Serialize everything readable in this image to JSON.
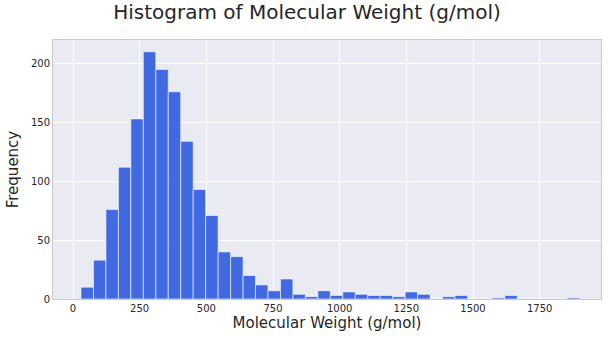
{
  "chart_data": {
    "type": "histogram",
    "title": "Histogram of Molecular Weight (g/mol)",
    "x_label": "Molecular Weight (g/mol)",
    "y_label": "Frequency",
    "bins": [
      30,
      76.75,
      123.5,
      170.25,
      217,
      263.75,
      310.5,
      357.25,
      404,
      450.75,
      497.5,
      544.25,
      591,
      637.75,
      684.5,
      731.25,
      778,
      824.75,
      871.5,
      918.25,
      965,
      1011.75,
      1058.5,
      1105.25,
      1152,
      1198.75,
      1245.5,
      1292.25,
      1339,
      1385.75,
      1432.5,
      1479.25,
      1526,
      1572.75,
      1619.5,
      1666.25,
      1713,
      1759.75,
      1806.5,
      1853.25,
      1900
    ],
    "counts": [
      10,
      33,
      76,
      112,
      153,
      210,
      195,
      176,
      134,
      93,
      71,
      40,
      36,
      20,
      12,
      7,
      17,
      4,
      2,
      7,
      3,
      6,
      4,
      3,
      3,
      2,
      6,
      4,
      0,
      2,
      3,
      0,
      0,
      1,
      3,
      0,
      0,
      0,
      0,
      1
    ],
    "color": "#4169e1",
    "xlim": [
      -75,
      1980
    ],
    "xticks": [
      0,
      250,
      500,
      750,
      1000,
      1250,
      1500,
      1750
    ],
    "ylim": [
      0,
      220
    ],
    "yticks": [
      0,
      50,
      100,
      150,
      200
    ],
    "grid": true
  }
}
